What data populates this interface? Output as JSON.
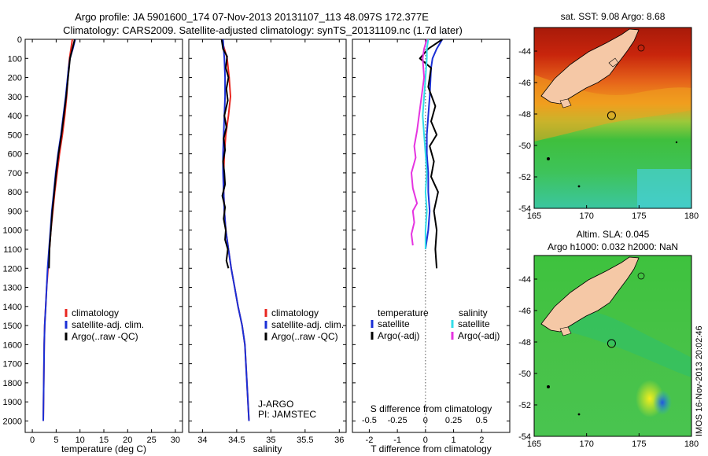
{
  "title_line1": "Argo profile: JA 5901600_174 07-Nov-2013 20131107_113 48.097S 172.377E",
  "title_line2": "Climatology: CARS2009. Satellite-adjusted climatology: synTS_20131109.nc (1.7d later)",
  "side_stamp": "IMOS 16-Nov-2013 20:02:46",
  "colors": {
    "climatology": "#e8261f",
    "satellite": "#1a2fd6",
    "argo": "#000000",
    "sat_salinity": "#33dde8",
    "argo_salinity": "#e534e0",
    "land": "#f5c8a6"
  },
  "chart_data": [
    {
      "type": "line",
      "xlabel": "temperature (deg C)",
      "ylabel": "",
      "xlim": [
        -1.5,
        31.5
      ],
      "ylim": [
        2060,
        0
      ],
      "xticks": [
        0,
        5,
        10,
        15,
        20,
        25,
        30
      ],
      "yticks": [
        0,
        100,
        200,
        300,
        400,
        500,
        600,
        700,
        800,
        900,
        1000,
        1100,
        1200,
        1300,
        1400,
        1500,
        1600,
        1700,
        1800,
        1900,
        2000
      ],
      "legend": [
        "climatology",
        "satellite-adj. clim.",
        "Argo(..raw -QC)"
      ],
      "legend_position": "lower-middle",
      "series": [
        {
          "name": "climatology",
          "x": [
            8.4,
            8.1,
            7.8,
            7.6,
            7.2,
            6.8,
            6.3,
            5.7,
            5.2,
            4.7,
            4.3,
            3.9,
            3.6,
            3.3,
            3.0,
            2.8,
            2.6,
            2.5,
            2.4,
            2.3
          ],
          "y": [
            0,
            50,
            100,
            150,
            300,
            400,
            500,
            600,
            700,
            800,
            900,
            1000,
            1100,
            1200,
            1300,
            1400,
            1500,
            1600,
            1800,
            2000
          ]
        },
        {
          "name": "satellite-adj. clim.",
          "x": [
            9.0,
            8.5,
            7.9,
            7.6,
            7.0,
            6.5,
            6.0,
            5.4,
            4.9,
            4.5,
            4.1,
            3.8,
            3.5,
            3.2,
            3.0,
            2.8,
            2.6,
            2.5,
            2.4,
            2.3
          ],
          "y": [
            0,
            50,
            100,
            150,
            300,
            400,
            500,
            600,
            700,
            800,
            900,
            1000,
            1100,
            1200,
            1300,
            1400,
            1500,
            1600,
            1800,
            2000
          ]
        },
        {
          "name": "Argo(..raw -QC)",
          "x": [
            8.9,
            8.4,
            7.9,
            7.7,
            7.1,
            6.6,
            6.1,
            5.5,
            5.0,
            4.6,
            4.2,
            3.9,
            3.6,
            3.5
          ],
          "y": [
            0,
            50,
            100,
            150,
            300,
            400,
            500,
            600,
            700,
            800,
            900,
            1000,
            1100,
            1200
          ]
        }
      ]
    },
    {
      "type": "line",
      "xlabel": "salinity",
      "ylabel": "",
      "xlim": [
        33.8,
        36.1
      ],
      "ylim": [
        2060,
        0
      ],
      "xticks": [
        34,
        34.5,
        35,
        35.5,
        36
      ],
      "legend": [
        "climatology",
        "satellite-adj. clim.",
        "Argo(..raw -QC)"
      ],
      "legend_position": "lower-right",
      "annotations": [
        "J-ARGO",
        "PI: JAMSTEC"
      ],
      "series": [
        {
          "name": "climatology",
          "x": [
            34.28,
            34.32,
            34.36,
            34.39,
            34.41,
            34.38,
            34.34,
            34.32,
            34.31,
            34.31,
            34.32,
            34.34,
            34.38,
            34.42,
            34.47,
            34.52,
            34.58,
            34.62,
            34.65,
            34.68
          ],
          "y": [
            0,
            50,
            100,
            200,
            300,
            400,
            500,
            600,
            700,
            800,
            900,
            1000,
            1100,
            1200,
            1300,
            1400,
            1500,
            1600,
            1800,
            2000
          ]
        },
        {
          "name": "satellite-adj. clim.",
          "x": [
            34.3,
            34.31,
            34.32,
            34.33,
            34.33,
            34.32,
            34.31,
            34.3,
            34.3,
            34.31,
            34.32,
            34.34,
            34.38,
            34.42,
            34.47,
            34.52,
            34.58,
            34.62,
            34.65,
            34.68
          ],
          "y": [
            0,
            50,
            100,
            200,
            300,
            400,
            500,
            600,
            700,
            800,
            900,
            1000,
            1100,
            1200,
            1300,
            1400,
            1500,
            1600,
            1800,
            2000
          ]
        },
        {
          "name": "Argo(..raw -QC)",
          "x": [
            34.28,
            34.3,
            34.36,
            34.34,
            34.38,
            34.35,
            34.37,
            34.32,
            34.35,
            34.31,
            34.33,
            34.3,
            34.32,
            34.33,
            34.29,
            34.33,
            34.31,
            34.34,
            34.33,
            34.37,
            34.35,
            34.38
          ],
          "y": [
            0,
            50,
            90,
            150,
            200,
            260,
            320,
            400,
            460,
            520,
            580,
            640,
            700,
            760,
            820,
            880,
            940,
            1000,
            1050,
            1100,
            1160,
            1200
          ]
        }
      ]
    },
    {
      "type": "line",
      "xlabel": "T difference from climatology",
      "xlabel_top": "S difference from climatology",
      "ylabel": "",
      "xlim": [
        -2.6,
        3.0
      ],
      "ylim": [
        2060,
        0
      ],
      "xticks": [
        -2,
        -1,
        0,
        1,
        2
      ],
      "xticklabels": [
        "-2",
        "-1",
        "0",
        "1",
        "2"
      ],
      "x2ticks": [
        -0.5,
        -0.25,
        0,
        0.25,
        0.5
      ],
      "x2ticklabels": [
        "-0.5",
        "-0.25",
        "0",
        "0.25",
        "0.5"
      ],
      "legend": [
        "temperature",
        "satellite",
        "Argo(-adj)",
        "salinity",
        "satellite",
        "Argo(-adj)"
      ],
      "legend_position": "lower-middle",
      "series": [
        {
          "name": "temperature satellite",
          "x": [
            0.6,
            0.4,
            0.25,
            0.2,
            0.15,
            0.1,
            0.05,
            0.05,
            0.1,
            0.1,
            0.15,
            0.1,
            0.05,
            0.0
          ],
          "y": [
            0,
            50,
            100,
            150,
            300,
            400,
            500,
            600,
            700,
            800,
            900,
            1000,
            1050,
            1100
          ]
        },
        {
          "name": "temperature Argo(-adj)",
          "x": [
            0.6,
            0.1,
            -0.2,
            0.2,
            0.1,
            0.35,
            0.2,
            0.4,
            0.15,
            0.3,
            0.2,
            0.45,
            0.3,
            0.4,
            0.35,
            0.4
          ],
          "y": [
            0,
            50,
            100,
            150,
            250,
            350,
            430,
            500,
            560,
            640,
            720,
            800,
            900,
            1000,
            1100,
            1200
          ]
        },
        {
          "name": "salinity satellite",
          "x": [
            0.1,
            0.05,
            0.05,
            0.0,
            -0.05,
            -0.1,
            -0.05,
            0.0,
            0.05,
            0.0,
            0.05,
            0.0,
            0.0
          ],
          "y": [
            0,
            50,
            100,
            200,
            300,
            400,
            500,
            600,
            700,
            800,
            900,
            1000,
            1100
          ]
        },
        {
          "name": "salinity Argo(-adj)",
          "x": [
            0.05,
            -0.05,
            -0.1,
            -0.05,
            -0.3,
            -0.4,
            -0.35,
            -0.5,
            -0.45,
            -0.3,
            -0.45,
            -0.4,
            -0.5,
            -0.45
          ],
          "y": [
            0,
            50,
            100,
            200,
            480,
            560,
            620,
            700,
            780,
            860,
            900,
            960,
            1020,
            1080
          ]
        }
      ]
    },
    {
      "type": "heatmap",
      "title": "sat. SST: 9.08 Argo: 8.68",
      "xlim": [
        165,
        180
      ],
      "ylim": [
        -54,
        -42.5
      ],
      "xticks": [
        165,
        170,
        175,
        180
      ],
      "yticks": [
        -44,
        -46,
        -48,
        -50,
        -52,
        -54
      ],
      "marker": {
        "lon": 172.377,
        "lat": -48.097
      }
    },
    {
      "type": "heatmap",
      "title": "Altim. SLA: 0.045",
      "subtitle": "Argo h1000: 0.032 h2000: NaN",
      "xlim": [
        165,
        180
      ],
      "ylim": [
        -54,
        -42.5
      ],
      "xticks": [
        165,
        170,
        175,
        180
      ],
      "yticks": [
        -44,
        -46,
        -48,
        -50,
        -52,
        -54
      ],
      "marker": {
        "lon": 172.377,
        "lat": -48.097
      }
    }
  ]
}
